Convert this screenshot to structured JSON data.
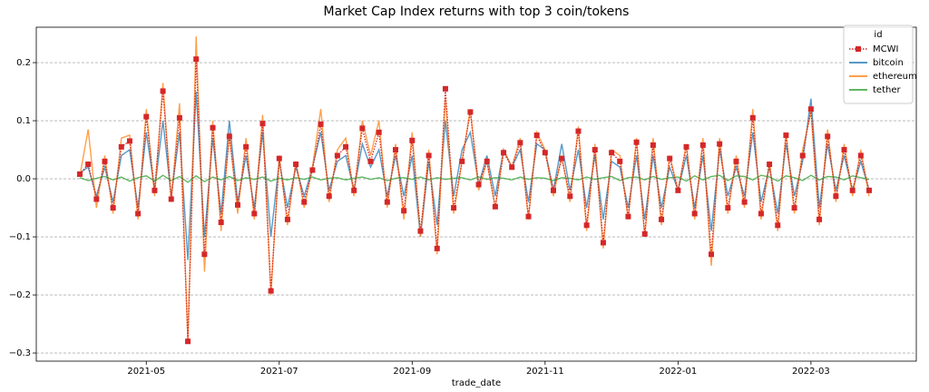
{
  "chart_data": {
    "type": "line",
    "title": "Market Cap Index returns with top 3 coin/tokens",
    "x_label": "trade_date",
    "legend_title": "id",
    "legend": "upper right",
    "grid": true,
    "categories": [
      null,
      null,
      null,
      null,
      null,
      null,
      null,
      null,
      "2021-05",
      null,
      null,
      null,
      null,
      null,
      null,
      null,
      null,
      null,
      null,
      null,
      null,
      null,
      null,
      null,
      "2021-07",
      null,
      null,
      null,
      null,
      null,
      null,
      null,
      null,
      null,
      null,
      null,
      null,
      null,
      null,
      null,
      "2021-09",
      null,
      null,
      null,
      null,
      null,
      null,
      null,
      null,
      null,
      null,
      null,
      null,
      null,
      null,
      null,
      "2021-11",
      null,
      null,
      null,
      null,
      null,
      null,
      null,
      null,
      null,
      null,
      null,
      null,
      null,
      null,
      null,
      "2022-01",
      null,
      null,
      null,
      null,
      null,
      null,
      null,
      null,
      null,
      null,
      null,
      null,
      null,
      null,
      null,
      "2022-03",
      null,
      null,
      null,
      null,
      null,
      null,
      null
    ],
    "ylim": [
      -0.314,
      0.261
    ],
    "yticks": [
      {
        "value": -0.3,
        "label": "−0.3"
      },
      {
        "value": -0.2,
        "label": "−0.2"
      },
      {
        "value": -0.1,
        "label": "−0.1"
      },
      {
        "value": 0,
        "label": "0.0"
      },
      0.1,
      0.2
    ],
    "series": [
      {
        "name": "MCWI",
        "color": "#d62728",
        "style": "dotted",
        "marker": "square",
        "values": [
          0.008,
          0.025,
          -0.035,
          0.03,
          -0.05,
          0.055,
          0.065,
          -0.06,
          0.107,
          -0.02,
          0.151,
          -0.035,
          0.105,
          -0.28,
          0.206,
          -0.13,
          0.088,
          -0.075,
          0.073,
          -0.045,
          0.055,
          -0.06,
          0.095,
          -0.193,
          0.035,
          -0.07,
          0.025,
          -0.04,
          0.015,
          0.094,
          -0.03,
          0.04,
          0.055,
          -0.02,
          0.087,
          0.03,
          0.08,
          -0.04,
          0.05,
          -0.055,
          0.066,
          -0.09,
          0.04,
          -0.12,
          0.155,
          -0.05,
          0.03,
          0.115,
          -0.01,
          0.03,
          -0.048,
          0.045,
          0.02,
          0.062,
          -0.065,
          0.075,
          0.045,
          -0.02,
          0.035,
          -0.03,
          0.082,
          -0.08,
          0.05,
          -0.11,
          0.045,
          0.03,
          -0.065,
          0.063,
          -0.095,
          0.058,
          -0.07,
          0.035,
          -0.02,
          0.055,
          -0.06,
          0.058,
          -0.13,
          0.06,
          -0.05,
          0.03,
          -0.04,
          0.105,
          -0.06,
          0.025,
          -0.08,
          0.075,
          -0.05,
          0.04,
          0.12,
          -0.07,
          0.073,
          -0.03,
          0.05,
          -0.02,
          0.04,
          -0.02
        ]
      },
      {
        "name": "bitcoin",
        "color": "#1f77b4",
        "values": [
          0.01,
          0.02,
          -0.03,
          0.02,
          -0.04,
          0.04,
          0.05,
          -0.05,
          0.08,
          -0.02,
          0.1,
          -0.03,
          0.08,
          -0.14,
          0.15,
          -0.1,
          0.07,
          -0.06,
          0.1,
          -0.04,
          0.04,
          -0.05,
          0.08,
          -0.1,
          0.03,
          -0.05,
          0.02,
          -0.03,
          0.02,
          0.08,
          -0.02,
          0.03,
          0.04,
          -0.02,
          0.06,
          0.02,
          0.05,
          -0.03,
          0.04,
          -0.03,
          0.04,
          -0.1,
          0.03,
          -0.08,
          0.1,
          -0.03,
          0.05,
          0.08,
          -0.01,
          0.04,
          -0.03,
          0.05,
          0.02,
          0.05,
          -0.04,
          0.06,
          0.05,
          -0.02,
          0.06,
          -0.02,
          0.05,
          -0.05,
          0.04,
          -0.07,
          0.03,
          0.02,
          -0.05,
          0.04,
          -0.07,
          0.04,
          -0.05,
          0.02,
          -0.02,
          0.04,
          -0.05,
          0.04,
          -0.09,
          0.05,
          -0.03,
          0.02,
          -0.03,
          0.08,
          -0.04,
          0.02,
          -0.06,
          0.06,
          -0.03,
          0.03,
          0.138,
          -0.05,
          0.06,
          -0.02,
          0.04,
          -0.02,
          0.03,
          -0.02
        ]
      },
      {
        "name": "ethereum",
        "color": "#ff7f0e",
        "values": [
          0.005,
          0.085,
          -0.05,
          0.04,
          -0.06,
          0.07,
          0.075,
          -0.07,
          0.12,
          -0.03,
          0.165,
          -0.04,
          0.13,
          -0.28,
          0.245,
          -0.16,
          0.1,
          -0.09,
          0.08,
          -0.06,
          0.07,
          -0.07,
          0.11,
          -0.2,
          0.04,
          -0.08,
          0.03,
          -0.05,
          0.02,
          0.12,
          -0.04,
          0.05,
          0.07,
          -0.03,
          0.1,
          0.04,
          0.1,
          -0.05,
          0.06,
          -0.07,
          0.08,
          -0.1,
          0.05,
          -0.13,
          0.14,
          -0.06,
          0.03,
          0.12,
          -0.02,
          0.03,
          -0.05,
          0.05,
          0.02,
          0.07,
          -0.07,
          0.08,
          0.05,
          -0.03,
          0.04,
          -0.04,
          0.09,
          -0.09,
          0.06,
          -0.12,
          0.05,
          0.04,
          -0.07,
          0.07,
          -0.1,
          0.07,
          -0.08,
          0.04,
          -0.02,
          0.06,
          -0.07,
          0.07,
          -0.15,
          0.07,
          -0.06,
          0.04,
          -0.05,
          0.12,
          -0.07,
          0.03,
          -0.09,
          0.08,
          -0.06,
          0.05,
          0.115,
          -0.08,
          0.085,
          -0.04,
          0.06,
          -0.03,
          0.05,
          -0.03
        ]
      },
      {
        "name": "tether",
        "color": "#2ca02c",
        "values": [
          0.002,
          -0.003,
          0.001,
          0.004,
          -0.002,
          0.003,
          -0.004,
          0.002,
          0.005,
          -0.004,
          0.006,
          -0.003,
          0.004,
          -0.006,
          0.005,
          -0.005,
          0.003,
          -0.002,
          0.004,
          -0.003,
          0.002,
          -0.001,
          0.003,
          -0.004,
          0.001,
          -0.002,
          0.002,
          -0.001,
          0.003,
          -0.002,
          0.001,
          0.002,
          -0.002,
          0.001,
          0.003,
          -0.001,
          0.002,
          -0.003,
          0.001,
          0.002,
          -0.001,
          0.003,
          -0.002,
          0.002,
          -0.001,
          0.001,
          0.002,
          -0.002,
          0.003,
          -0.001,
          0.002,
          0.001,
          -0.002,
          0.003,
          -0.001,
          0.002,
          0.001,
          -0.003,
          0.002,
          0.001,
          -0.002,
          0.003,
          -0.001,
          0.002,
          0.004,
          -0.003,
          0.002,
          0.003,
          -0.002,
          0.004,
          -0.001,
          0.002,
          0.003,
          -0.004,
          0.005,
          -0.002,
          0.004,
          0.006,
          -0.003,
          0.005,
          0.004,
          -0.002,
          0.006,
          0.003,
          -0.004,
          0.005,
          0.002,
          -0.003,
          0.006,
          -0.002,
          0.004,
          0.003,
          -0.002,
          0.005,
          0.002,
          -0.001
        ]
      }
    ]
  }
}
